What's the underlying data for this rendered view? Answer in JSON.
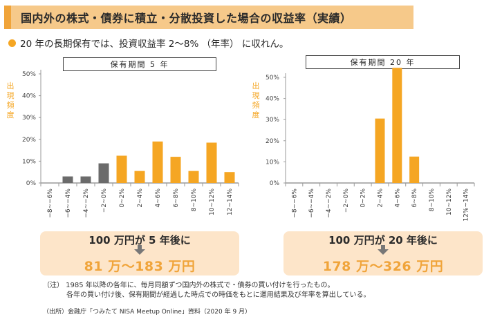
{
  "header": {
    "title": "国内外の株式・債券に積立・分散投資した場合の収益率（実績）"
  },
  "subtitle": "20 年の長期保有では、投資収益率 2～8% （年率） に収れん。",
  "colors": {
    "accent": "#f5a623",
    "negative": "#6b6b6b",
    "header_bg": "#f6c98a",
    "box_bg": "#fde5c9"
  },
  "icons": {
    "bullet": "orange-dot-icon",
    "arrow": "down-arrow-icon"
  },
  "chart_data": [
    {
      "type": "bar",
      "title": "保有期間 5 年",
      "ylabel": "出現頻度",
      "categories": [
        "−8~−6%",
        "−6~−4%",
        "−4~−2%",
        "−2~0%",
        "0~2%",
        "2~4%",
        "4~6%",
        "6~8%",
        "8~10%",
        "10~12%",
        "12~14%"
      ],
      "values": [
        0,
        3,
        3,
        9,
        12.5,
        5.5,
        19,
        12,
        5.5,
        18.5,
        5
      ],
      "bar_colors": [
        "#6b6b6b",
        "#6b6b6b",
        "#6b6b6b",
        "#6b6b6b",
        "#f5a623",
        "#f5a623",
        "#f5a623",
        "#f5a623",
        "#f5a623",
        "#f5a623",
        "#f5a623"
      ],
      "yticks": [
        "0%",
        "10%",
        "20%",
        "30%",
        "40%",
        "50%"
      ],
      "ylim": [
        0,
        50
      ],
      "grid": false,
      "result": {
        "title": "100 万円が 5 年後に",
        "value": "81 万～183 万円"
      }
    },
    {
      "type": "bar",
      "title": "保有期間 20 年",
      "ylabel": "出現頻度",
      "categories": [
        "−8~−6%",
        "−6~−4%",
        "−4~−2%",
        "−2~0%",
        "0~2%",
        "2~4%",
        "4~6%",
        "6~8%",
        "8~10%",
        "10~12%",
        "12%~14%"
      ],
      "values": [
        0,
        0,
        0,
        0,
        0,
        30.5,
        54.5,
        12.5,
        0,
        0,
        0
      ],
      "bar_colors": [
        "#f5a623",
        "#f5a623",
        "#f5a623",
        "#f5a623",
        "#f5a623",
        "#f5a623",
        "#f5a623",
        "#f5a623",
        "#f5a623",
        "#f5a623",
        "#f5a623"
      ],
      "yticks": [
        "0%",
        "10%",
        "20%",
        "30%",
        "40%",
        "50%"
      ],
      "ylim": [
        0,
        50
      ],
      "grid": false,
      "result": {
        "title": "100 万円が 20 年後に",
        "value": "178 万～326 万円"
      }
    }
  ],
  "notes": {
    "line1": "（注）  1985 年以降の各年に、毎月同額ずつ国内外の株式で・債券の買い付けを行ったもの。",
    "line2": "各年の買い付け後、保有期間が経過した時点での時価をもとに運用結果及び年率を算出している。",
    "source": "（出所）金融庁「つみたて NISA Meetup Online」資料（2020 年 9 月）"
  }
}
